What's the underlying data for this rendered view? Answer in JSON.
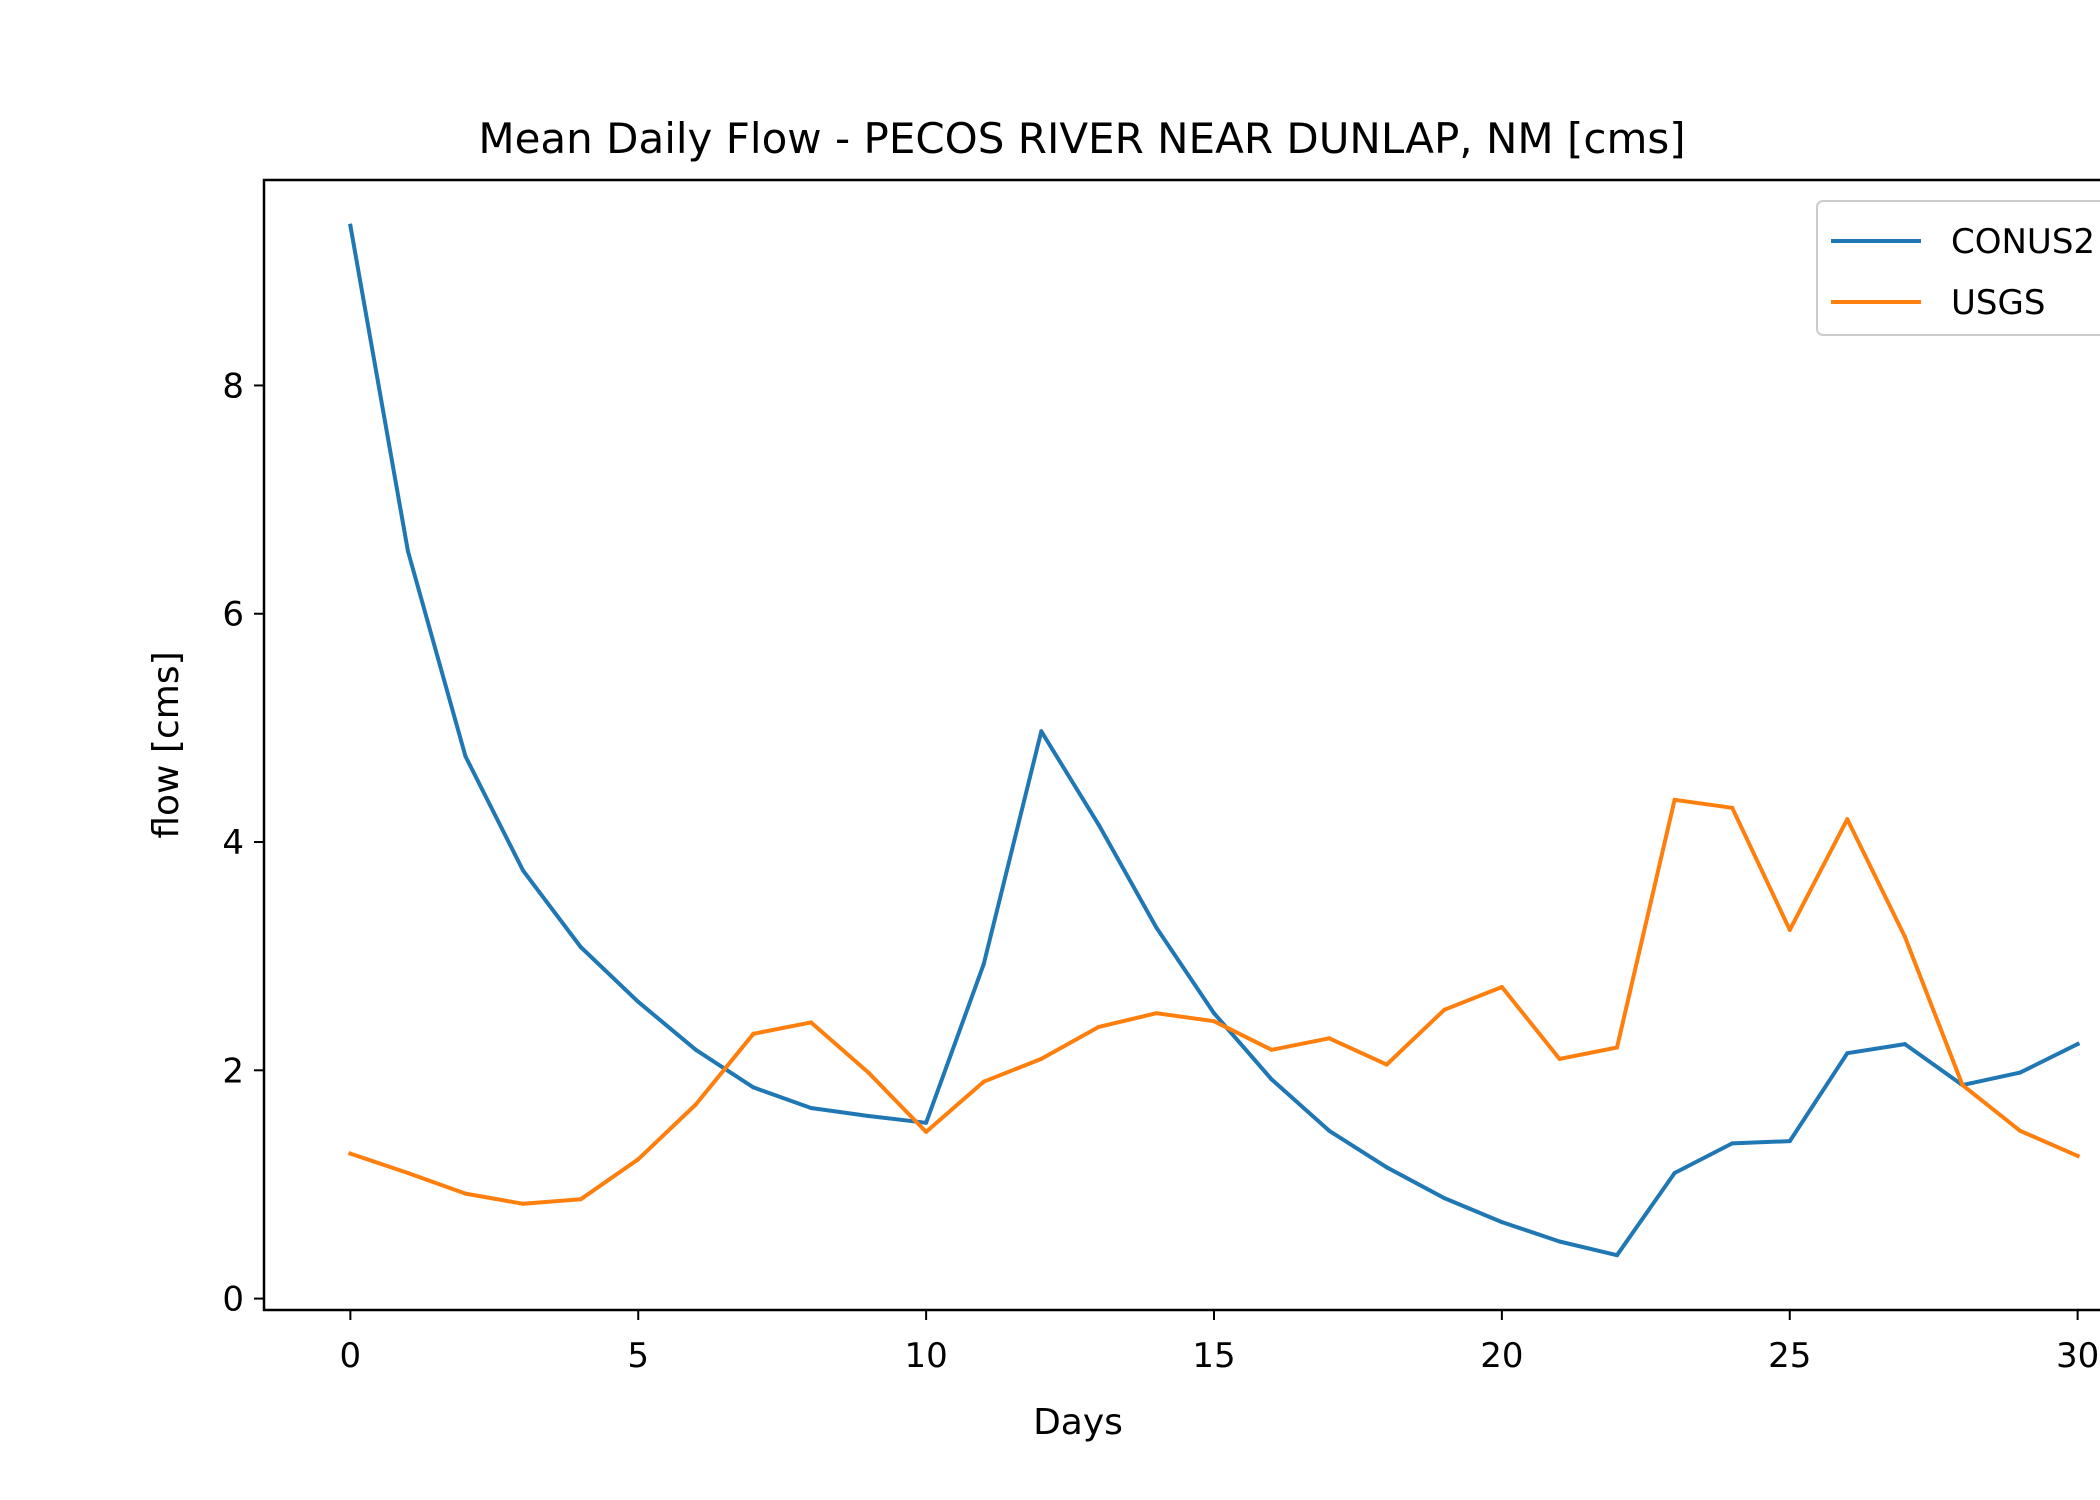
{
  "chart_data": {
    "type": "line",
    "title": "Mean Daily Flow - PECOS RIVER NEAR DUNLAP, NM [cms]",
    "xlabel": "Days",
    "ylabel": "flow [cms]",
    "xlim": [
      -1.5,
      31.5
    ],
    "ylim": [
      -0.1,
      9.8
    ],
    "xticks": [
      0,
      5,
      10,
      15,
      20,
      25,
      30
    ],
    "yticks": [
      0,
      2,
      4,
      6,
      8
    ],
    "grid": false,
    "legend": "top-right",
    "x": [
      0,
      1,
      2,
      3,
      4,
      5,
      6,
      7,
      8,
      9,
      10,
      11,
      12,
      13,
      14,
      15,
      16,
      17,
      18,
      19,
      20,
      21,
      22,
      23,
      24,
      25,
      26,
      27,
      28,
      29,
      30
    ],
    "series": [
      {
        "name": "CONUS2",
        "color": "#1f77b4",
        "values": [
          9.4,
          6.55,
          4.75,
          3.75,
          3.08,
          2.6,
          2.18,
          1.85,
          1.67,
          1.6,
          1.54,
          2.93,
          4.97,
          4.15,
          3.25,
          2.5,
          1.92,
          1.47,
          1.15,
          0.88,
          0.67,
          0.5,
          0.38,
          1.1,
          1.36,
          1.38,
          2.15,
          2.23,
          1.87,
          1.98,
          2.23
        ]
      },
      {
        "name": "USGS",
        "color": "#ff7f0e",
        "values": [
          1.27,
          1.1,
          0.92,
          0.83,
          0.87,
          1.22,
          1.7,
          2.32,
          2.42,
          1.98,
          1.46,
          1.9,
          2.1,
          2.38,
          2.5,
          2.43,
          2.18,
          2.28,
          2.05,
          2.53,
          2.73,
          2.1,
          2.2,
          4.37,
          4.3,
          3.23,
          4.2,
          3.17,
          1.87,
          1.47,
          1.25
        ]
      }
    ]
  }
}
